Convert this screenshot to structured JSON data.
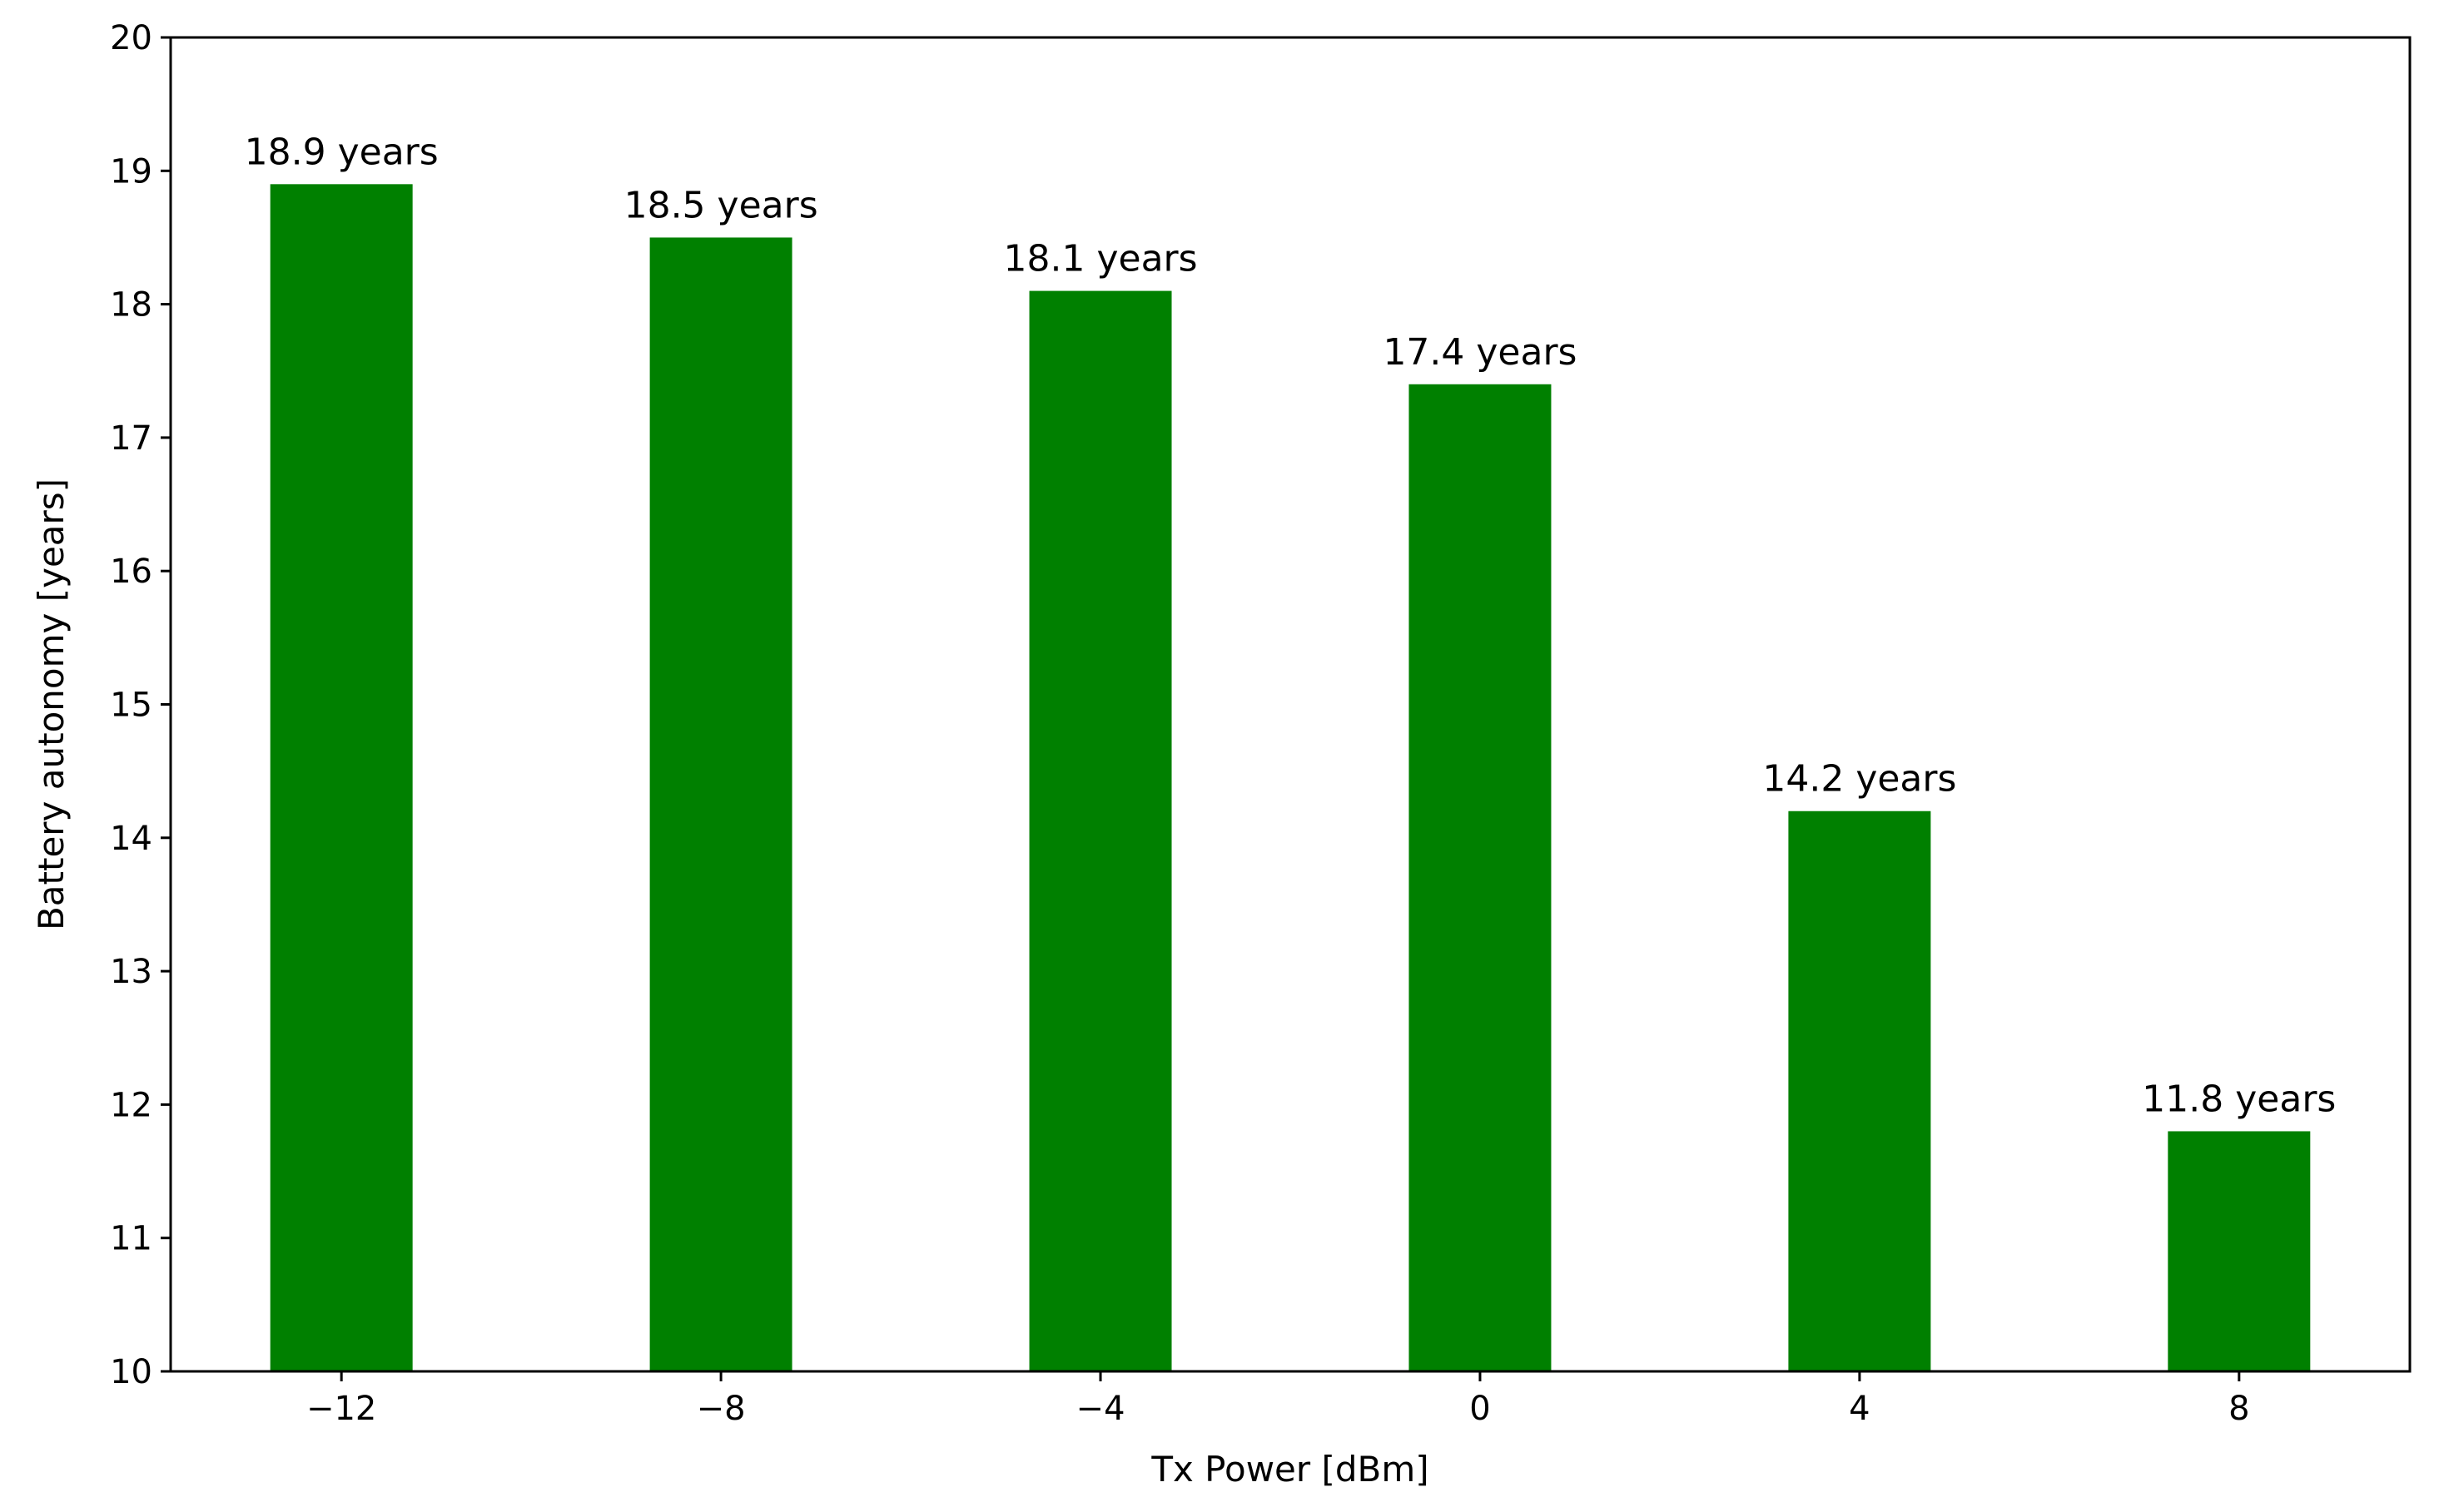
{
  "chart_data": {
    "type": "bar",
    "xlabel": "Tx Power [dBm]",
    "ylabel": "Battery autonomy [years]",
    "x": [
      -12,
      -8,
      -4,
      0,
      4,
      8
    ],
    "categories": [
      "−12",
      "−8",
      "−4",
      "0",
      "4",
      "8"
    ],
    "values": [
      18.9,
      18.5,
      18.1,
      17.4,
      14.2,
      11.8
    ],
    "data_labels": [
      "18.9 years",
      "18.5 years",
      "18.1 years",
      "17.4 years",
      "14.2 years",
      "11.8 years"
    ],
    "xlim": [
      -13.8,
      9.8
    ],
    "ylim": [
      10,
      20
    ],
    "bar_width": 1.5,
    "yticks": [
      10,
      11,
      12,
      13,
      14,
      15,
      16,
      17,
      18,
      19,
      20
    ],
    "ytick_labels": [
      "10",
      "11",
      "12",
      "13",
      "14",
      "15",
      "16",
      "17",
      "18",
      "19",
      "20"
    ],
    "bar_color": "#008000",
    "grid": false,
    "legend": "none"
  }
}
